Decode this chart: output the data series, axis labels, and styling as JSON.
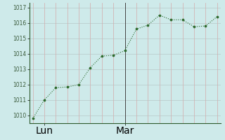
{
  "x_values": [
    0,
    1,
    2,
    3,
    4,
    5,
    6,
    7,
    8,
    9,
    10,
    11,
    12,
    13,
    14,
    15,
    16
  ],
  "y_values": [
    1009.8,
    1011.0,
    1011.8,
    1011.85,
    1012.0,
    1013.1,
    1013.85,
    1013.9,
    1014.2,
    1015.6,
    1015.85,
    1016.5,
    1016.2,
    1016.2,
    1015.75,
    1015.8,
    1016.4
  ],
  "x_tick_positions": [
    1,
    8
  ],
  "x_tick_labels": [
    "Lun",
    "Mar"
  ],
  "y_min": 1009.5,
  "y_max": 1017.3,
  "y_ticks": [
    1010,
    1011,
    1012,
    1013,
    1014,
    1015,
    1016,
    1017
  ],
  "line_color": "#2d6a2d",
  "marker_color": "#2d6a2d",
  "bg_color": "#ceeaea",
  "grid_h_color": "#b8c8c8",
  "grid_v_color": "#d4aaaa",
  "vline_x": 8,
  "vline_color": "#444444",
  "spine_color": "#2d5a2d",
  "tick_label_color": "#3a5a3a",
  "tick_fontsize": 5.5,
  "x_tick_fontsize": 6.5
}
